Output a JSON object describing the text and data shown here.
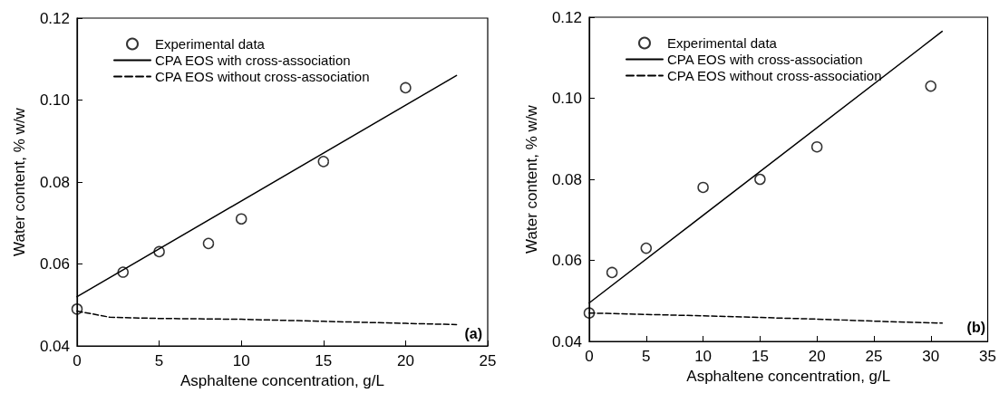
{
  "chart_data": [
    {
      "type": "scatter",
      "xlabel": "Asphaltene concentration, g/L",
      "ylabel": "Water content, % w/w",
      "annotations": [
        "(a)"
      ],
      "xlim": [
        0,
        25
      ],
      "xticks": [
        0,
        5,
        10,
        15,
        20,
        25
      ],
      "ylim": [
        0.04,
        0.12
      ],
      "yticks": [
        0.04,
        0.06,
        0.08,
        {
          "value": 0.1,
          "label": "0.10"
        },
        0.12
      ],
      "grid": false,
      "legend": "top left",
      "series": [
        {
          "name": "Experimental data",
          "type": "scatter",
          "marker": "circle",
          "color": "#000000",
          "x": [
            0,
            2.8,
            5,
            8,
            10,
            15,
            20
          ],
          "values": [
            0.049,
            0.058,
            0.063,
            0.065,
            0.071,
            0.085,
            0.103
          ]
        },
        {
          "name": "CPA EOS with cross-association",
          "type": "line",
          "marker": "none",
          "line_style": "solid",
          "color": "#000000",
          "x": [
            0,
            23.1
          ],
          "values": [
            0.052,
            0.106
          ]
        },
        {
          "name": "CPA EOS without cross-association",
          "type": "line",
          "marker": "none",
          "line_style": "dashed",
          "color": "#000000",
          "x": [
            0,
            2,
            5,
            10,
            15,
            20,
            23.1
          ],
          "values": [
            0.0485,
            0.047,
            0.0467,
            0.0465,
            0.046,
            0.0455,
            0.0452
          ]
        }
      ]
    },
    {
      "type": "scatter",
      "xlabel": "Asphaltene concentration, g/L",
      "ylabel": "Water content, % w/w",
      "annotations": [
        "(b)"
      ],
      "xlim": [
        0,
        35
      ],
      "xticks": [
        0,
        5,
        10,
        15,
        20,
        25,
        30,
        35
      ],
      "ylim": [
        0.04,
        0.12
      ],
      "yticks": [
        0.04,
        0.06,
        0.08,
        {
          "value": 0.1,
          "label": "0.10"
        },
        0.12
      ],
      "grid": false,
      "legend": "top left",
      "series": [
        {
          "name": "Experimental data",
          "type": "scatter",
          "marker": "circle",
          "color": "#000000",
          "x": [
            0,
            2,
            5,
            10,
            15,
            20,
            30
          ],
          "values": [
            0.047,
            0.057,
            0.063,
            0.078,
            0.08,
            0.088,
            0.103
          ]
        },
        {
          "name": "CPA EOS with cross-association",
          "type": "line",
          "marker": "none",
          "line_style": "solid",
          "color": "#000000",
          "x": [
            0,
            31
          ],
          "values": [
            0.0495,
            0.1165
          ]
        },
        {
          "name": "CPA EOS without cross-association",
          "type": "line",
          "marker": "none",
          "line_style": "dashed",
          "color": "#000000",
          "x": [
            0,
            10,
            20,
            27,
            31
          ],
          "values": [
            0.047,
            0.0463,
            0.0455,
            0.0448,
            0.0445
          ]
        }
      ]
    }
  ]
}
